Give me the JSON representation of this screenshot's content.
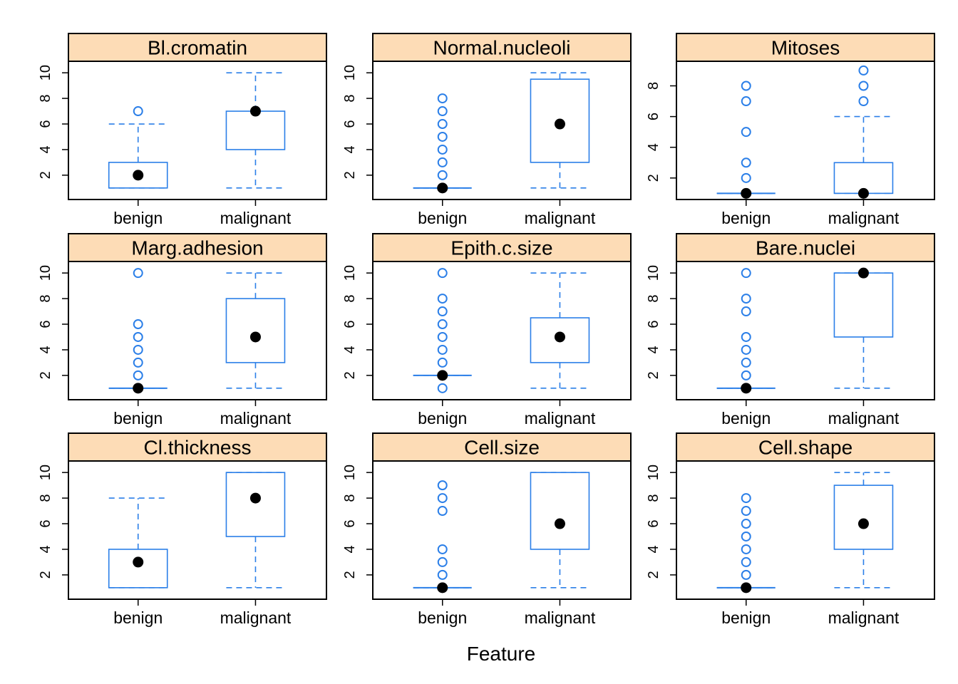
{
  "chart_data": {
    "type": "box",
    "xlabel": "Feature",
    "ylabel": "",
    "categories": [
      "benign",
      "malignant"
    ],
    "colors": {
      "box": "#2b7fe8",
      "strip": "#fddcb6",
      "median": "#000000"
    },
    "panels": [
      {
        "title": "Bl.cromatin",
        "ylim": [
          0.1,
          10.9
        ],
        "yticks": [
          2,
          4,
          6,
          8,
          10
        ],
        "boxes": [
          {
            "category": "benign",
            "whisker_low": 1,
            "q1": 1,
            "median": 2,
            "q3": 3,
            "whisker_high": 6,
            "outliers": [
              7
            ]
          },
          {
            "category": "malignant",
            "whisker_low": 1,
            "q1": 4,
            "median": 7,
            "q3": 7,
            "whisker_high": 10,
            "outliers": []
          }
        ]
      },
      {
        "title": "Normal.nucleoli",
        "ylim": [
          0.1,
          10.9
        ],
        "yticks": [
          2,
          4,
          6,
          8,
          10
        ],
        "boxes": [
          {
            "category": "benign",
            "whisker_low": 1,
            "q1": 1,
            "median": 1,
            "q3": 1,
            "whisker_high": 1,
            "outliers": [
              2,
              3,
              4,
              5,
              6,
              7,
              8
            ]
          },
          {
            "category": "malignant",
            "whisker_low": 1,
            "q1": 3,
            "median": 6,
            "q3": 9.5,
            "whisker_high": 10,
            "outliers": []
          }
        ]
      },
      {
        "title": "Mitoses",
        "ylim": [
          0.6,
          9.6
        ],
        "yticks": [
          2,
          4,
          6,
          8
        ],
        "boxes": [
          {
            "category": "benign",
            "whisker_low": 1,
            "q1": 1,
            "median": 1,
            "q3": 1,
            "whisker_high": 1,
            "outliers": [
              2,
              3,
              5,
              7,
              8
            ]
          },
          {
            "category": "malignant",
            "whisker_low": 1,
            "q1": 1,
            "median": 1,
            "q3": 3,
            "whisker_high": 6,
            "outliers": [
              7,
              8,
              9
            ]
          }
        ]
      },
      {
        "title": "Marg.adhesion",
        "ylim": [
          0.1,
          10.9
        ],
        "yticks": [
          2,
          4,
          6,
          8,
          10
        ],
        "boxes": [
          {
            "category": "benign",
            "whisker_low": 1,
            "q1": 1,
            "median": 1,
            "q3": 1,
            "whisker_high": 1,
            "outliers": [
              2,
              3,
              4,
              5,
              6,
              10
            ]
          },
          {
            "category": "malignant",
            "whisker_low": 1,
            "q1": 3,
            "median": 5,
            "q3": 8,
            "whisker_high": 10,
            "outliers": []
          }
        ]
      },
      {
        "title": "Epith.c.size",
        "ylim": [
          0.1,
          10.9
        ],
        "yticks": [
          2,
          4,
          6,
          8,
          10
        ],
        "boxes": [
          {
            "category": "benign",
            "whisker_low": 2,
            "q1": 2,
            "median": 2,
            "q3": 2,
            "whisker_high": 2,
            "outliers": [
              1,
              3,
              4,
              5,
              6,
              7,
              8,
              10
            ]
          },
          {
            "category": "malignant",
            "whisker_low": 1,
            "q1": 3,
            "median": 5,
            "q3": 6.5,
            "whisker_high": 10,
            "outliers": []
          }
        ]
      },
      {
        "title": "Bare.nuclei",
        "ylim": [
          0.1,
          10.9
        ],
        "yticks": [
          2,
          4,
          6,
          8,
          10
        ],
        "boxes": [
          {
            "category": "benign",
            "whisker_low": 1,
            "q1": 1,
            "median": 1,
            "q3": 1,
            "whisker_high": 1,
            "outliers": [
              2,
              3,
              4,
              5,
              7,
              8,
              10
            ]
          },
          {
            "category": "malignant",
            "whisker_low": 1,
            "q1": 5,
            "median": 10,
            "q3": 10,
            "whisker_high": 10,
            "outliers": []
          }
        ]
      },
      {
        "title": "Cl.thickness",
        "ylim": [
          0.1,
          10.9
        ],
        "yticks": [
          2,
          4,
          6,
          8,
          10
        ],
        "boxes": [
          {
            "category": "benign",
            "whisker_low": 1,
            "q1": 1,
            "median": 3,
            "q3": 4,
            "whisker_high": 8,
            "outliers": []
          },
          {
            "category": "malignant",
            "whisker_low": 1,
            "q1": 5,
            "median": 8,
            "q3": 10,
            "whisker_high": 10,
            "outliers": []
          }
        ]
      },
      {
        "title": "Cell.size",
        "ylim": [
          0.1,
          10.9
        ],
        "yticks": [
          2,
          4,
          6,
          8,
          10
        ],
        "boxes": [
          {
            "category": "benign",
            "whisker_low": 1,
            "q1": 1,
            "median": 1,
            "q3": 1,
            "whisker_high": 1,
            "outliers": [
              2,
              3,
              4,
              7,
              8,
              9
            ]
          },
          {
            "category": "malignant",
            "whisker_low": 1,
            "q1": 4,
            "median": 6,
            "q3": 10,
            "whisker_high": 10,
            "outliers": []
          }
        ]
      },
      {
        "title": "Cell.shape",
        "ylim": [
          0.1,
          10.9
        ],
        "yticks": [
          2,
          4,
          6,
          8,
          10
        ],
        "boxes": [
          {
            "category": "benign",
            "whisker_low": 1,
            "q1": 1,
            "median": 1,
            "q3": 1,
            "whisker_high": 1,
            "outliers": [
              2,
              3,
              4,
              5,
              6,
              7,
              8
            ]
          },
          {
            "category": "malignant",
            "whisker_low": 1,
            "q1": 4,
            "median": 6,
            "q3": 9,
            "whisker_high": 10,
            "outliers": []
          }
        ]
      }
    ]
  }
}
